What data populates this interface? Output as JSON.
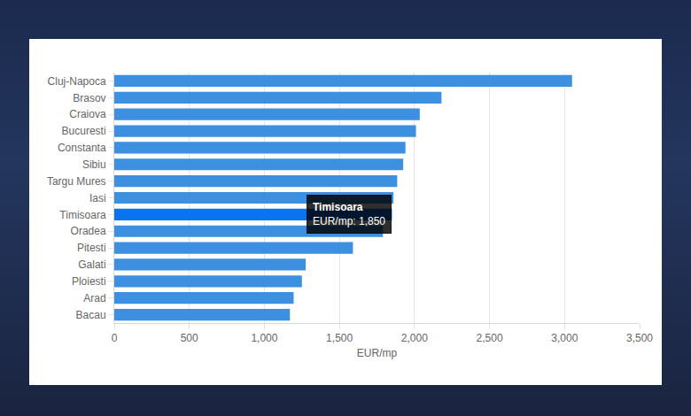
{
  "chart_data": {
    "type": "bar",
    "orientation": "horizontal",
    "categories": [
      "Cluj-Napoca",
      "Brasov",
      "Craiova",
      "Bucuresti",
      "Constanta",
      "Sibiu",
      "Targu Mures",
      "Iasi",
      "Timisoara",
      "Oradea",
      "Pitesti",
      "Galati",
      "Ploiesti",
      "Arad",
      "Bacau"
    ],
    "values": [
      3050,
      2180,
      2035,
      2010,
      1940,
      1925,
      1885,
      1860,
      1850,
      1790,
      1590,
      1275,
      1250,
      1195,
      1170
    ],
    "colors": [
      "#3d8fe0",
      "#3d8fe0",
      "#3d8fe0",
      "#3d8fe0",
      "#3d8fe0",
      "#3d8fe0",
      "#3d8fe0",
      "#3d8fe0",
      "#0a74f0",
      "#3d8fe0",
      "#3d8fe0",
      "#3d8fe0",
      "#3d8fe0",
      "#3d8fe0",
      "#3d8fe0"
    ],
    "xlabel": "EUR/mp",
    "xlim": [
      0,
      3500
    ],
    "xticks": [
      0,
      500,
      {
        "value": 1000,
        "label": "1,000"
      },
      {
        "value": 1500,
        "label": "1,500"
      },
      {
        "value": 2000,
        "label": "2,000"
      },
      {
        "value": 2500,
        "label": "2,500"
      },
      {
        "value": 3000,
        "label": "3,000"
      },
      {
        "value": 3500,
        "label": "3,500"
      }
    ],
    "grid": true,
    "annotations": [
      {
        "x": 1850,
        "y": "Timisoara",
        "text": [
          "Timisoara",
          "EUR/mp: 1,850"
        ]
      }
    ]
  }
}
